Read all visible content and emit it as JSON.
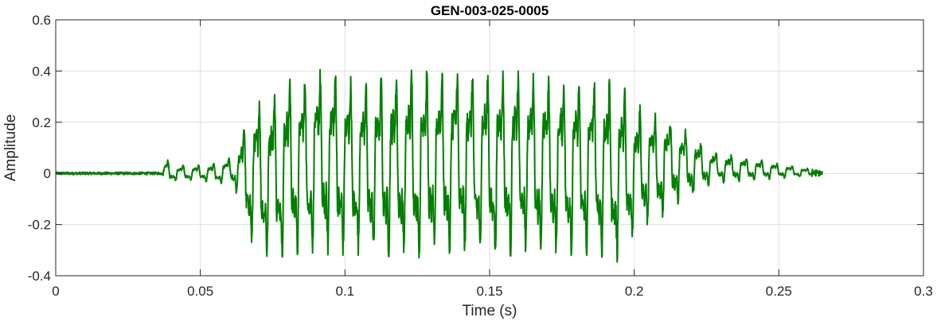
{
  "chart_data": {
    "type": "line",
    "title": "GEN-003-025-0005",
    "xlabel": "Time (s)",
    "ylabel": "Amplitude",
    "xlim": [
      0,
      0.3
    ],
    "ylim": [
      -0.4,
      0.6
    ],
    "x_ticks": [
      0,
      0.05,
      0.1,
      0.15,
      0.2,
      0.25,
      0.3
    ],
    "x_tick_labels": [
      "0",
      "0.05",
      "0.1",
      "0.15",
      "0.2",
      "0.25",
      "0.3"
    ],
    "y_ticks": [
      -0.4,
      -0.2,
      0,
      0.2,
      0.4,
      0.6
    ],
    "y_tick_labels": [
      "-0.4",
      "-0.2",
      "0",
      "0.2",
      "0.4",
      "0.6"
    ],
    "grid": true,
    "series": [
      {
        "color": "#007f00",
        "x_start": 0,
        "x_end": 0.265,
        "envelope": {
          "t": [
            0,
            0.037,
            0.038,
            0.04,
            0.05,
            0.055,
            0.06,
            0.063,
            0.066,
            0.07,
            0.075,
            0.08,
            0.09,
            0.095,
            0.1,
            0.11,
            0.12,
            0.13,
            0.14,
            0.15,
            0.16,
            0.17,
            0.18,
            0.185,
            0.19,
            0.195,
            0.2,
            0.205,
            0.21,
            0.215,
            0.22,
            0.225,
            0.23,
            0.24,
            0.25,
            0.265
          ],
          "upper": [
            0.005,
            0.005,
            0.07,
            0.03,
            0.035,
            0.04,
            0.06,
            0.12,
            0.22,
            0.3,
            0.32,
            0.37,
            0.4,
            0.42,
            0.38,
            0.37,
            0.4,
            0.41,
            0.41,
            0.4,
            0.4,
            0.38,
            0.37,
            0.37,
            0.37,
            0.36,
            0.28,
            0.25,
            0.23,
            0.2,
            0.15,
            0.1,
            0.08,
            0.06,
            0.04,
            0.01
          ],
          "lower": [
            -0.005,
            -0.005,
            -0.06,
            -0.03,
            -0.03,
            -0.04,
            -0.04,
            -0.09,
            -0.25,
            -0.32,
            -0.34,
            -0.32,
            -0.31,
            -0.32,
            -0.32,
            -0.32,
            -0.33,
            -0.33,
            -0.32,
            -0.33,
            -0.32,
            -0.32,
            -0.32,
            -0.32,
            -0.33,
            -0.35,
            -0.25,
            -0.2,
            -0.17,
            -0.12,
            -0.09,
            -0.05,
            -0.04,
            -0.03,
            -0.02,
            -0.01
          ]
        },
        "dominant_frequency_hz": 190
      }
    ]
  }
}
